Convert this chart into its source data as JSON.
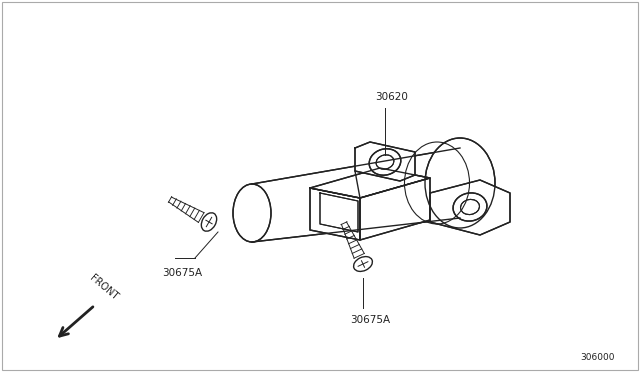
{
  "bg_color": "#ffffff",
  "border_color": "#aaaaaa",
  "line_color": "#222222",
  "part_number_30620": "30620",
  "part_number_30675A_1": "30675A",
  "part_number_30675A_2": "30675A",
  "diagram_number": "306000",
  "front_label": "FRONT"
}
